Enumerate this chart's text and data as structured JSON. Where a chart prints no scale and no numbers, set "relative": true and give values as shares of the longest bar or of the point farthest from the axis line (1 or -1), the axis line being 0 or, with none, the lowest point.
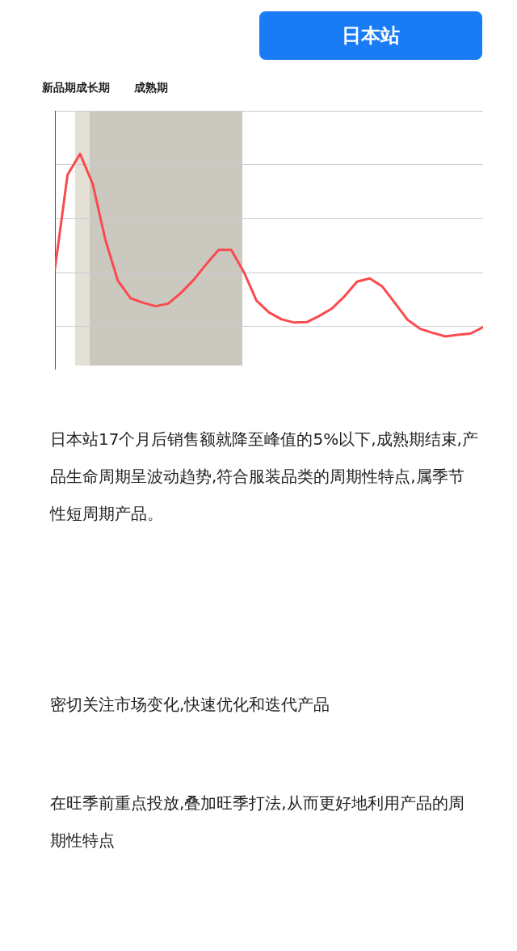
{
  "chart_data": {
    "type": "line",
    "title": "日本站",
    "relative": true,
    "grid": "y",
    "marker": "none",
    "line_style": "solid",
    "categories": [
      null,
      null,
      null,
      null,
      null,
      null,
      null,
      null,
      null,
      null,
      null,
      null,
      null,
      null,
      null,
      null,
      null,
      null,
      null,
      null,
      null,
      null,
      null,
      null,
      null,
      null,
      null,
      null,
      null,
      null,
      null,
      null,
      null,
      null,
      null
    ],
    "series": [
      {
        "color": "#fa4a4f",
        "values": [
          0.467,
          0.903,
          1.0,
          0.861,
          0.603,
          0.412,
          0.331,
          0.31,
          0.294,
          0.306,
          0.355,
          0.415,
          0.487,
          0.555,
          0.555,
          0.453,
          0.32,
          0.265,
          0.233,
          0.218,
          0.22,
          0.249,
          0.283,
          0.34,
          0.408,
          0.423,
          0.385,
          0.309,
          0.231,
          0.189,
          0.17,
          0.154,
          0.161,
          0.167,
          0.197
        ]
      }
    ],
    "annotations": [
      "新品期",
      "成长期",
      "成熟期",
      "日本站17个月后销售额就降至峰值的5%以下,成熟期结束,产品生命周期呈波动趋势,符合服装品类的周期性特点,属季节性短周期产品。",
      "密切关注市场变化,快速优化和迭代产品",
      "在旺季前重点投放,叠加旺季打法,从而更好地利用产品的周期性特点"
    ]
  }
}
